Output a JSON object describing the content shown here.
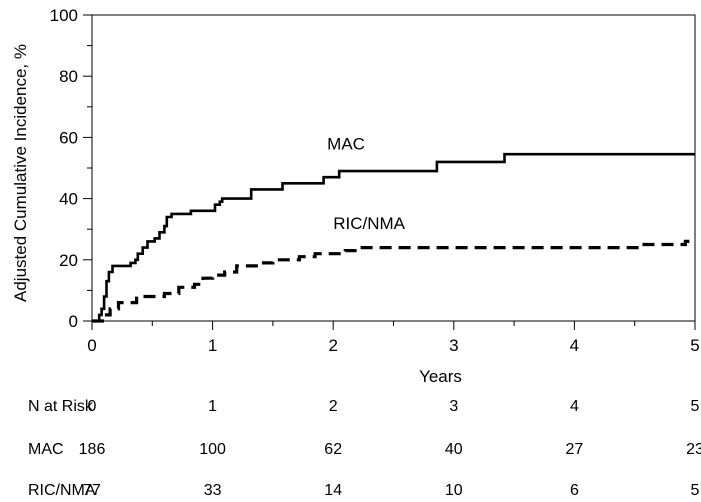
{
  "chart_data": {
    "type": "line",
    "xlabel": "Years",
    "ylabel": "Adjusted Cumulative Incidence, %",
    "xlim": [
      0,
      5
    ],
    "ylim": [
      0,
      100
    ],
    "xticks": [
      "0",
      "1",
      "2",
      "3",
      "4",
      "5"
    ],
    "yticks": [
      "0",
      "20",
      "40",
      "60",
      "80",
      "100"
    ],
    "grid": false,
    "series": [
      {
        "name": "MAC",
        "line_style": "solid",
        "color": "#000000",
        "points": [
          [
            0.0,
            0
          ],
          [
            0.05,
            0
          ],
          [
            0.06,
            2
          ],
          [
            0.08,
            4
          ],
          [
            0.1,
            8
          ],
          [
            0.12,
            13
          ],
          [
            0.14,
            16
          ],
          [
            0.17,
            18
          ],
          [
            0.3,
            18
          ],
          [
            0.32,
            19
          ],
          [
            0.36,
            20
          ],
          [
            0.38,
            22
          ],
          [
            0.42,
            24
          ],
          [
            0.46,
            26
          ],
          [
            0.52,
            27
          ],
          [
            0.56,
            29
          ],
          [
            0.6,
            31
          ],
          [
            0.62,
            34
          ],
          [
            0.66,
            35
          ],
          [
            0.8,
            35
          ],
          [
            0.82,
            36
          ],
          [
            1.0,
            36
          ],
          [
            1.02,
            38
          ],
          [
            1.06,
            39
          ],
          [
            1.08,
            40
          ],
          [
            1.3,
            40
          ],
          [
            1.32,
            43
          ],
          [
            1.55,
            43
          ],
          [
            1.58,
            45
          ],
          [
            1.9,
            45
          ],
          [
            1.92,
            47
          ],
          [
            2.02,
            47
          ],
          [
            2.05,
            49
          ],
          [
            2.85,
            49
          ],
          [
            2.86,
            52
          ],
          [
            3.4,
            52
          ],
          [
            3.42,
            54.5
          ],
          [
            5.0,
            54.5
          ]
        ]
      },
      {
        "name": "RIC/NMA",
        "line_style": "dashed",
        "color": "#000000",
        "points": [
          [
            0.0,
            0
          ],
          [
            0.1,
            0
          ],
          [
            0.12,
            2
          ],
          [
            0.15,
            4
          ],
          [
            0.22,
            6
          ],
          [
            0.35,
            6
          ],
          [
            0.37,
            8
          ],
          [
            0.55,
            8
          ],
          [
            0.6,
            9
          ],
          [
            0.72,
            11
          ],
          [
            0.85,
            12
          ],
          [
            0.92,
            14
          ],
          [
            1.0,
            15
          ],
          [
            1.1,
            16
          ],
          [
            1.2,
            18
          ],
          [
            1.4,
            19
          ],
          [
            1.5,
            20
          ],
          [
            1.72,
            21
          ],
          [
            1.85,
            22
          ],
          [
            2.1,
            23
          ],
          [
            2.2,
            24
          ],
          [
            4.5,
            24
          ],
          [
            4.55,
            25
          ],
          [
            4.9,
            25
          ],
          [
            4.92,
            26
          ],
          [
            5.0,
            26
          ]
        ]
      }
    ],
    "annotations": [
      {
        "text": "MAC",
        "x": 1.95,
        "y": 56
      },
      {
        "text": "RIC/NMA",
        "x": 2.0,
        "y": 30
      }
    ],
    "risk_table": {
      "title": "N at Risk",
      "times": [
        "0",
        "1",
        "2",
        "3",
        "4",
        "5"
      ],
      "rows": [
        {
          "label": "MAC",
          "values": [
            "186",
            "100",
            "62",
            "40",
            "27",
            "23"
          ]
        },
        {
          "label": "RIC/NMA",
          "values": [
            "77",
            "33",
            "14",
            "10",
            "6",
            "5"
          ]
        }
      ]
    }
  }
}
